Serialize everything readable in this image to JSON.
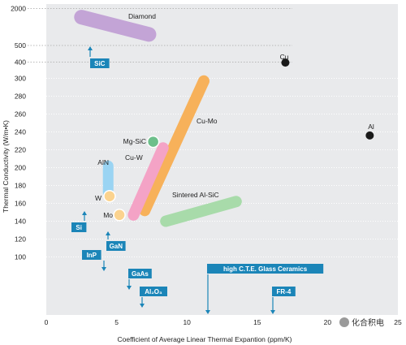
{
  "chart_data": {
    "type": "scatter",
    "xlabel": "Coefficient of Average Linear Thermal Expantion (ppm/K)",
    "ylabel": "Thermal Conductivity (W/m•K)",
    "xlim": [
      0,
      25
    ],
    "x_ticks": [
      "0",
      "5",
      "10",
      "15",
      "20",
      "25"
    ],
    "y_ticks": [
      "100",
      "120",
      "140",
      "160",
      "180",
      "200",
      "220",
      "240",
      "260",
      "280",
      "300",
      "400",
      "500",
      "2000"
    ],
    "y_scale": "broken (linear 100–300, compressed 300–2000)",
    "grid": "dotted horizontal lines",
    "materials": [
      {
        "label": "Diamond",
        "shape": "band",
        "x": [
          2.5,
          7.3
        ],
        "y": [
          1650,
          950
        ],
        "color": "#c3a4d6"
      },
      {
        "label": "Cu-Mo",
        "shape": "band",
        "x": [
          7,
          11.2
        ],
        "y": [
          152,
          297
        ],
        "color": "#f7b15a"
      },
      {
        "label": "Cu-W",
        "shape": "band",
        "x": [
          6.2,
          8.3
        ],
        "y": [
          147,
          222
        ],
        "color": "#f4a3c6"
      },
      {
        "label": "Sintered Al-SiC",
        "shape": "band",
        "x": [
          8.5,
          13.5
        ],
        "y": [
          140,
          162
        ],
        "color": "#a8dbaa"
      },
      {
        "label": "AlN",
        "shape": "band",
        "x": [
          4.4,
          4.4
        ],
        "y": [
          202,
          172
        ],
        "color": "#9ad4f3"
      },
      {
        "label": "Mg-SiC",
        "shape": "point",
        "x": 7.6,
        "y": 229,
        "color": "#6dbf8b"
      },
      {
        "label": "W",
        "shape": "point",
        "x": 4.5,
        "y": 168,
        "color": "#fbd38f"
      },
      {
        "label": "Mo",
        "shape": "point",
        "x": 5.2,
        "y": 147,
        "color": "#fbd38f"
      },
      {
        "label": "Cu",
        "shape": "point",
        "x": 17.0,
        "y": 397,
        "color": "#1a1a1a"
      },
      {
        "label": "Al",
        "shape": "point",
        "x": 23.0,
        "y": 236,
        "color": "#1a1a1a"
      }
    ],
    "arrow_markers": [
      {
        "label": "SiC",
        "x": 3.5,
        "y": 540,
        "direction": "up"
      },
      {
        "label": "Si",
        "x": 2.8,
        "y": 148,
        "direction": "up"
      },
      {
        "label": "GaN",
        "x": 4.8,
        "y": 121,
        "direction": "up"
      },
      {
        "label": "InP",
        "x": 4.3,
        "y": 80,
        "direction": "down"
      },
      {
        "label": "GaAs",
        "x": 5.9,
        "y": 46,
        "direction": "down"
      },
      {
        "label": "Al₂O₃",
        "x": 6.8,
        "y": 28,
        "direction": "down"
      },
      {
        "label": "high C.T.E. Glass Ceramics",
        "x": 11.4,
        "y": 8,
        "direction": "down"
      },
      {
        "label": "FR-4",
        "x": 16.3,
        "y": 5,
        "direction": "down"
      }
    ],
    "colors": {
      "plot_bg": "#e9eaec",
      "label_box": "#1b85b8",
      "grid": "#ffffff"
    }
  },
  "watermark": "化合积电"
}
